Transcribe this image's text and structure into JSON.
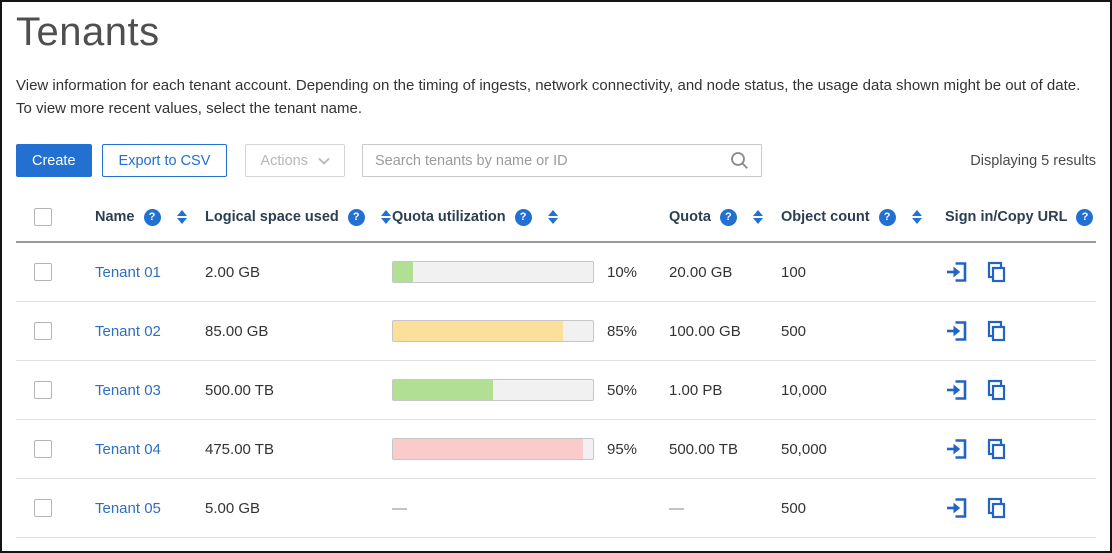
{
  "page": {
    "title": "Tenants",
    "description_lines": [
      "View information for each tenant account. Depending on the timing of ingests, network connectivity, and node status, the usage data shown might be out of date.",
      "To view more recent values, select the tenant name."
    ],
    "results_text": "Displaying 5 results"
  },
  "toolbar": {
    "create_label": "Create",
    "export_label": "Export to CSV",
    "actions_label": "Actions",
    "search_placeholder": "Search tenants by name or ID"
  },
  "table": {
    "empty_placeholder": "—",
    "columns": [
      {
        "label": "Name",
        "help": true,
        "sortable": true
      },
      {
        "label": "Logical space used",
        "help": true,
        "sortable": true
      },
      {
        "label": "Quota utilization",
        "help": true,
        "sortable": true
      },
      {
        "label": "Quota",
        "help": true,
        "sortable": true
      },
      {
        "label": "Object count",
        "help": true,
        "sortable": true
      },
      {
        "label": "Sign in/Copy URL",
        "help": true,
        "sortable": false
      }
    ],
    "rows": [
      {
        "name": "Tenant 01",
        "logical_space_used": "2.00 GB",
        "quota_utilization_pct": 10,
        "quota_utilization_label": "10%",
        "bar_color": "#b1df93",
        "quota": "20.00 GB",
        "object_count": "100"
      },
      {
        "name": "Tenant 02",
        "logical_space_used": "85.00 GB",
        "quota_utilization_pct": 85,
        "quota_utilization_label": "85%",
        "bar_color": "#fbdf9b",
        "quota": "100.00 GB",
        "object_count": "500"
      },
      {
        "name": "Tenant 03",
        "logical_space_used": "500.00 TB",
        "quota_utilization_pct": 50,
        "quota_utilization_label": "50%",
        "bar_color": "#b1df93",
        "quota": "1.00 PB",
        "object_count": "10,000"
      },
      {
        "name": "Tenant 04",
        "logical_space_used": "475.00 TB",
        "quota_utilization_pct": 95,
        "quota_utilization_label": "95%",
        "bar_color": "#f9cbca",
        "quota": "500.00 TB",
        "object_count": "50,000"
      },
      {
        "name": "Tenant 05",
        "logical_space_used": "5.00 GB",
        "quota_utilization_pct": null,
        "quota_utilization_label": null,
        "bar_color": null,
        "quota": null,
        "object_count": "500"
      }
    ]
  },
  "colors": {
    "accent_blue": "#2270d2",
    "icon_blue": "#2263c4",
    "link_blue": "#2e6fc0",
    "bar_green": "#b1df93",
    "bar_yellow": "#fbdf9b",
    "bar_red": "#f9cbca",
    "bar_track": "#f1f1f1",
    "header_rule": "#9a9a9a"
  }
}
